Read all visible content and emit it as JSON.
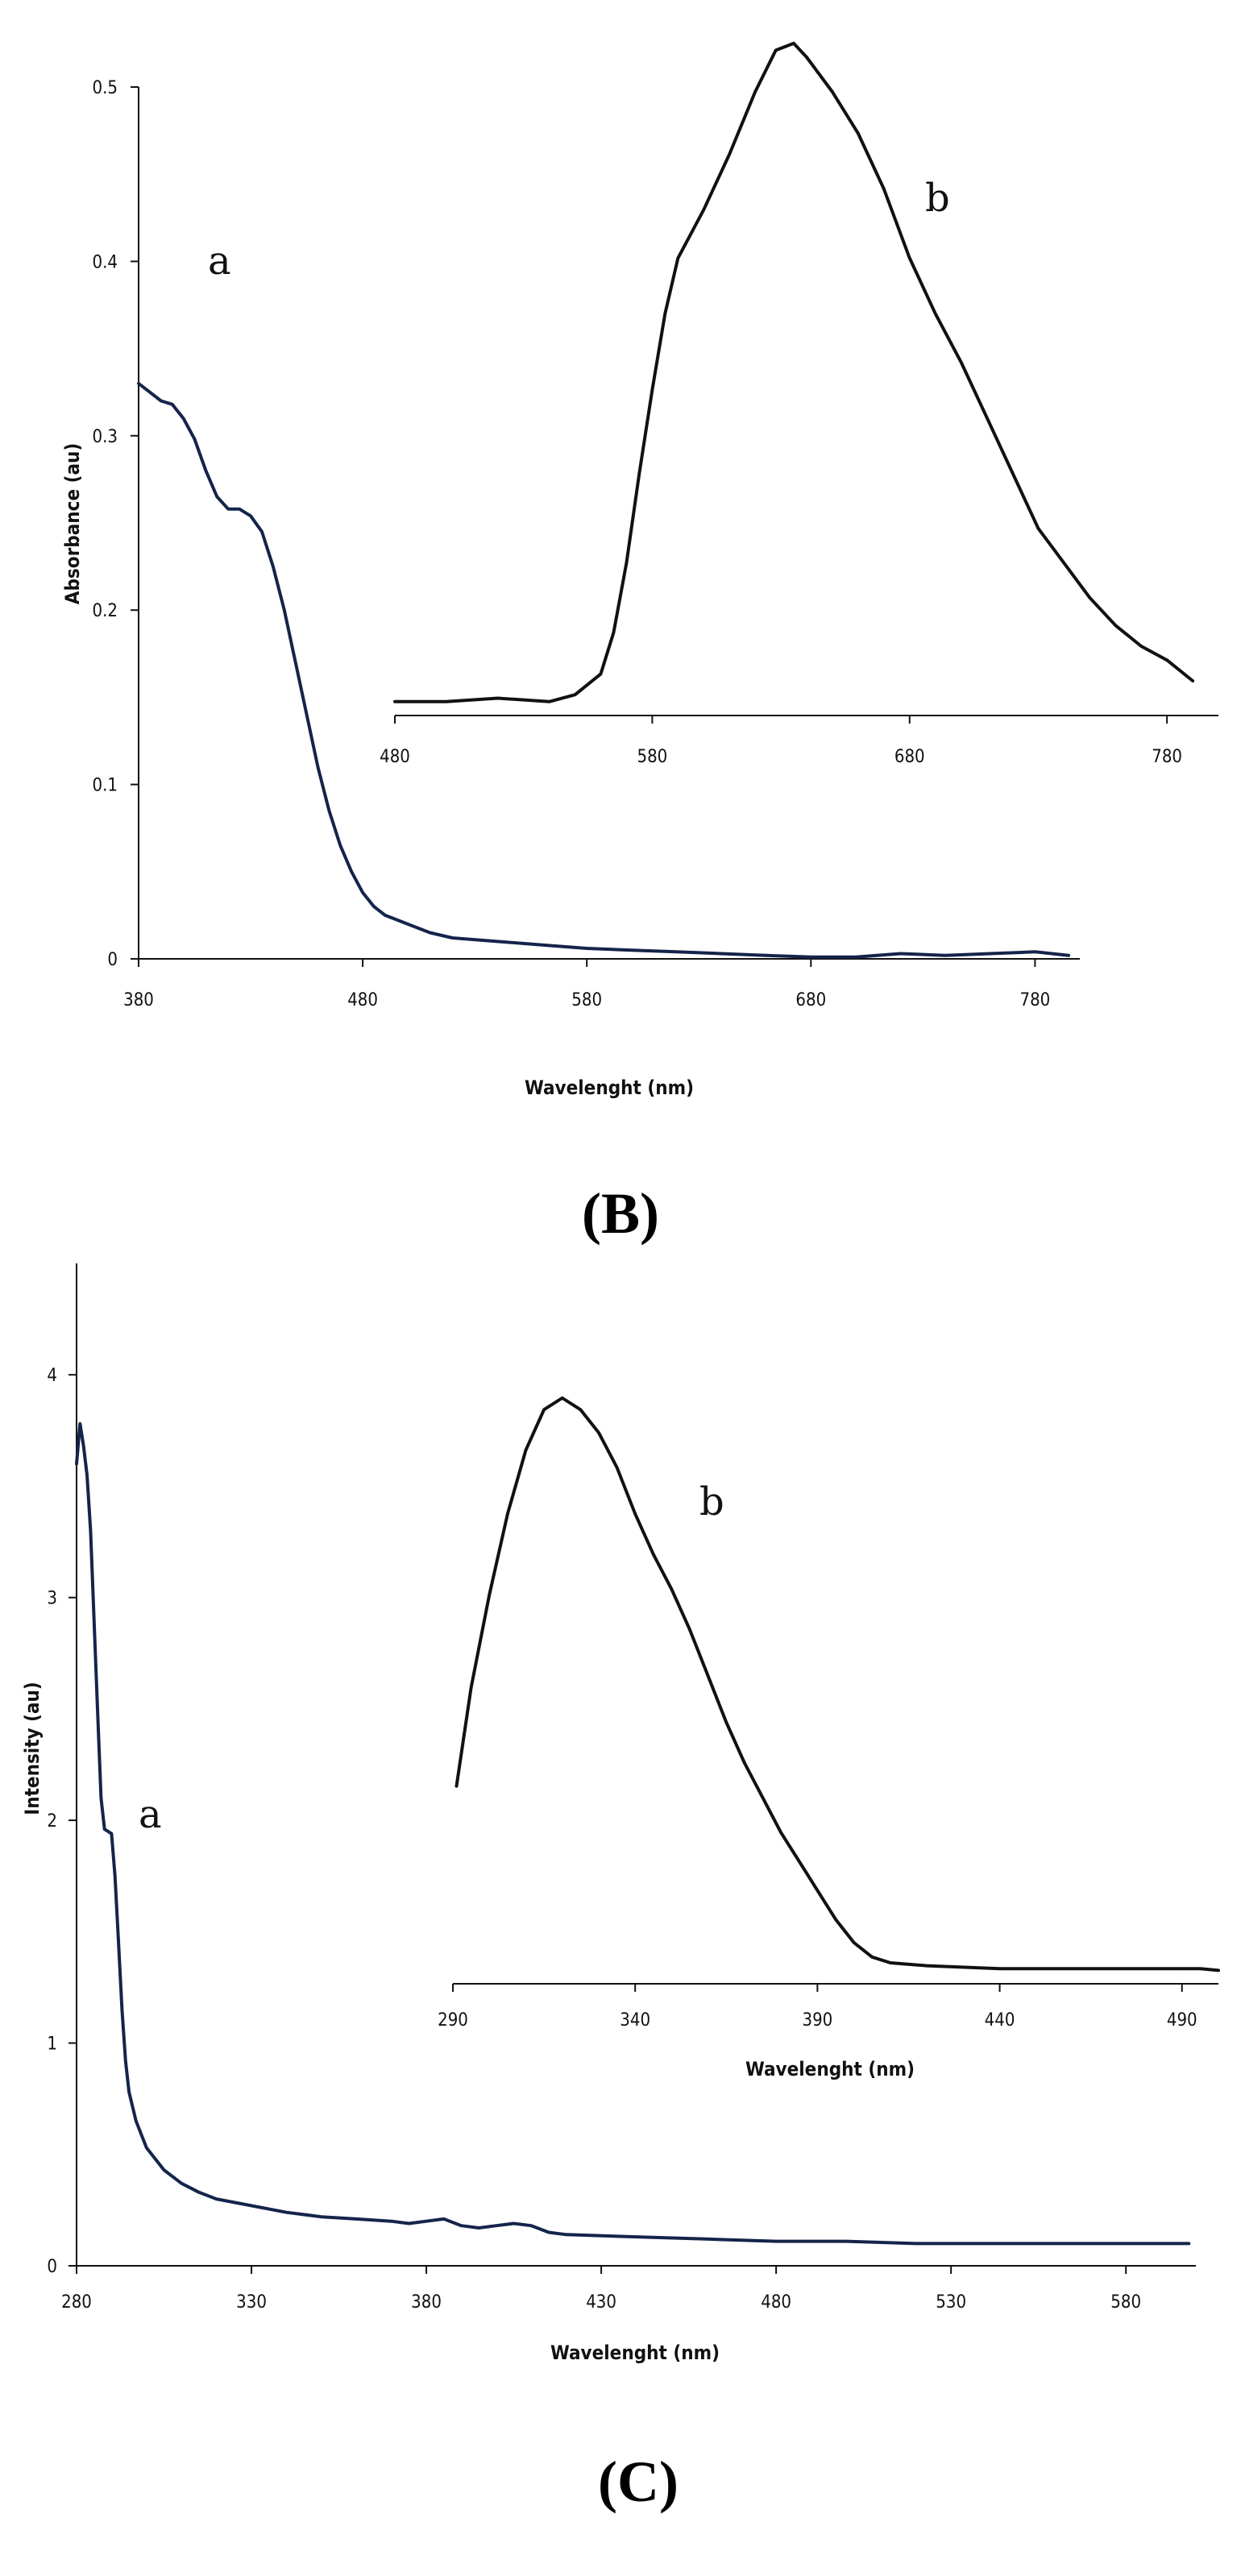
{
  "panels": {
    "B": {
      "label": "(B)"
    },
    "C": {
      "label": "(C)"
    }
  },
  "chart_data": [
    {
      "id": "B-main",
      "type": "line",
      "xlabel": "Wavelenght (nm)",
      "ylabel": "Absorbance (au)",
      "xlim": [
        380,
        800
      ],
      "ylim": [
        0,
        0.5
      ],
      "x_ticks": [
        "380",
        "480",
        "580",
        "680",
        "780"
      ],
      "y_ticks": [
        "0",
        "0.1",
        "0.2",
        "0.3",
        "0.4",
        "0.5"
      ],
      "grid": false,
      "series": [
        {
          "name": "a",
          "color": "#14244a",
          "points": [
            [
              380,
              0.33
            ],
            [
              385,
              0.325
            ],
            [
              390,
              0.32
            ],
            [
              395,
              0.318
            ],
            [
              400,
              0.31
            ],
            [
              405,
              0.298
            ],
            [
              410,
              0.28
            ],
            [
              415,
              0.265
            ],
            [
              420,
              0.258
            ],
            [
              425,
              0.258
            ],
            [
              430,
              0.254
            ],
            [
              435,
              0.245
            ],
            [
              440,
              0.225
            ],
            [
              445,
              0.2
            ],
            [
              450,
              0.17
            ],
            [
              455,
              0.14
            ],
            [
              460,
              0.11
            ],
            [
              465,
              0.085
            ],
            [
              470,
              0.065
            ],
            [
              475,
              0.05
            ],
            [
              480,
              0.038
            ],
            [
              485,
              0.03
            ],
            [
              490,
              0.025
            ],
            [
              500,
              0.02
            ],
            [
              510,
              0.015
            ],
            [
              520,
              0.012
            ],
            [
              540,
              0.01
            ],
            [
              560,
              0.008
            ],
            [
              580,
              0.006
            ],
            [
              600,
              0.005
            ],
            [
              620,
              0.004
            ],
            [
              640,
              0.003
            ],
            [
              660,
              0.002
            ],
            [
              680,
              0.001
            ],
            [
              700,
              0.001
            ],
            [
              720,
              0.003
            ],
            [
              740,
              0.002
            ],
            [
              760,
              0.003
            ],
            [
              780,
              0.004
            ],
            [
              795,
              0.002
            ]
          ]
        }
      ],
      "annotation": "a"
    },
    {
      "id": "B-inset",
      "type": "line",
      "xlim": [
        480,
        800
      ],
      "ylim": [
        0,
        1
      ],
      "x_ticks": [
        "480",
        "580",
        "680",
        "780"
      ],
      "series": [
        {
          "name": "b",
          "color": "#111111",
          "points": [
            [
              480,
              0.02
            ],
            [
              500,
              0.02
            ],
            [
              520,
              0.025
            ],
            [
              540,
              0.02
            ],
            [
              550,
              0.03
            ],
            [
              560,
              0.06
            ],
            [
              565,
              0.12
            ],
            [
              570,
              0.22
            ],
            [
              575,
              0.35
            ],
            [
              580,
              0.47
            ],
            [
              585,
              0.58
            ],
            [
              590,
              0.66
            ],
            [
              600,
              0.73
            ],
            [
              610,
              0.81
            ],
            [
              620,
              0.9
            ],
            [
              628,
              0.96
            ],
            [
              635,
              0.97
            ],
            [
              640,
              0.95
            ],
            [
              650,
              0.9
            ],
            [
              660,
              0.84
            ],
            [
              670,
              0.76
            ],
            [
              680,
              0.66
            ],
            [
              690,
              0.58
            ],
            [
              700,
              0.51
            ],
            [
              710,
              0.43
            ],
            [
              720,
              0.35
            ],
            [
              730,
              0.27
            ],
            [
              740,
              0.22
            ],
            [
              750,
              0.17
            ],
            [
              760,
              0.13
            ],
            [
              770,
              0.1
            ],
            [
              780,
              0.08
            ],
            [
              790,
              0.05
            ]
          ]
        }
      ],
      "annotation": "b"
    },
    {
      "id": "C-main",
      "type": "line",
      "xlabel": "Wavelenght (nm)",
      "ylabel": "Intensity (au)",
      "xlim": [
        280,
        600
      ],
      "ylim": [
        0,
        4.5
      ],
      "x_ticks": [
        "280",
        "330",
        "380",
        "430",
        "480",
        "530",
        "580"
      ],
      "y_ticks": [
        "0",
        "1",
        "2",
        "3",
        "4"
      ],
      "grid": false,
      "series": [
        {
          "name": "a",
          "color": "#14244a",
          "points": [
            [
              280,
              3.6
            ],
            [
              281,
              3.78
            ],
            [
              282,
              3.68
            ],
            [
              283,
              3.55
            ],
            [
              284,
              3.3
            ],
            [
              285,
              2.9
            ],
            [
              286,
              2.5
            ],
            [
              287,
              2.1
            ],
            [
              288,
              1.96
            ],
            [
              289,
              1.95
            ],
            [
              290,
              1.94
            ],
            [
              291,
              1.75
            ],
            [
              292,
              1.45
            ],
            [
              293,
              1.15
            ],
            [
              294,
              0.92
            ],
            [
              295,
              0.78
            ],
            [
              297,
              0.65
            ],
            [
              300,
              0.53
            ],
            [
              305,
              0.43
            ],
            [
              310,
              0.37
            ],
            [
              315,
              0.33
            ],
            [
              320,
              0.3
            ],
            [
              330,
              0.27
            ],
            [
              340,
              0.24
            ],
            [
              350,
              0.22
            ],
            [
              360,
              0.21
            ],
            [
              370,
              0.2
            ],
            [
              375,
              0.19
            ],
            [
              380,
              0.2
            ],
            [
              385,
              0.21
            ],
            [
              390,
              0.18
            ],
            [
              395,
              0.17
            ],
            [
              400,
              0.18
            ],
            [
              405,
              0.19
            ],
            [
              410,
              0.18
            ],
            [
              415,
              0.15
            ],
            [
              420,
              0.14
            ],
            [
              440,
              0.13
            ],
            [
              460,
              0.12
            ],
            [
              480,
              0.11
            ],
            [
              500,
              0.11
            ],
            [
              520,
              0.1
            ],
            [
              540,
              0.1
            ],
            [
              560,
              0.1
            ],
            [
              580,
              0.1
            ],
            [
              598,
              0.1
            ]
          ]
        }
      ],
      "annotation": "a"
    },
    {
      "id": "C-inset",
      "type": "line",
      "xlabel": "Wavelenght (nm)",
      "xlim": [
        290,
        500
      ],
      "ylim": [
        0,
        1
      ],
      "x_ticks": [
        "290",
        "340",
        "390",
        "440",
        "490"
      ],
      "series": [
        {
          "name": "b",
          "color": "#111111",
          "points": [
            [
              291,
              0.33
            ],
            [
              295,
              0.5
            ],
            [
              300,
              0.66
            ],
            [
              305,
              0.8
            ],
            [
              310,
              0.91
            ],
            [
              315,
              0.98
            ],
            [
              320,
              1.0
            ],
            [
              325,
              0.98
            ],
            [
              330,
              0.94
            ],
            [
              335,
              0.88
            ],
            [
              340,
              0.8
            ],
            [
              345,
              0.73
            ],
            [
              350,
              0.67
            ],
            [
              355,
              0.6
            ],
            [
              360,
              0.52
            ],
            [
              365,
              0.44
            ],
            [
              370,
              0.37
            ],
            [
              375,
              0.31
            ],
            [
              380,
              0.25
            ],
            [
              385,
              0.2
            ],
            [
              390,
              0.15
            ],
            [
              395,
              0.1
            ],
            [
              400,
              0.06
            ],
            [
              405,
              0.035
            ],
            [
              410,
              0.025
            ],
            [
              420,
              0.02
            ],
            [
              440,
              0.015
            ],
            [
              460,
              0.015
            ],
            [
              480,
              0.015
            ],
            [
              495,
              0.015
            ],
            [
              500,
              0.012
            ]
          ]
        }
      ],
      "annotation": "b"
    }
  ]
}
